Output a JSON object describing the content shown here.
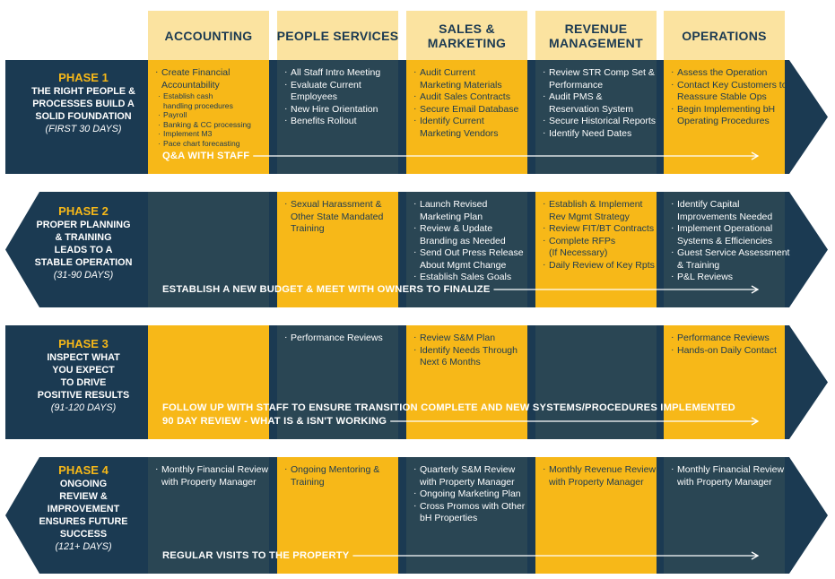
{
  "colors": {
    "navy": "#1b3a52",
    "gold": "#f7b818",
    "header_bg": "#fbe3a0",
    "dark_cell": "#2a4654"
  },
  "columns": [
    "ACCOUNTING",
    "PEOPLE SERVICES",
    "SALES &\nMARKETING",
    "REVENUE\nMANAGEMENT",
    "OPERATIONS"
  ],
  "phases": [
    {
      "num": "PHASE 1",
      "title": "THE RIGHT PEOPLE &\nPROCESSES BUILD A\nSOLID FOUNDATION",
      "days": "(FIRST 30 DAYS)",
      "banner": [
        "Q&A WITH STAFF"
      ],
      "cells": [
        {
          "items": [
            "Create Financial\nAccountability"
          ],
          "subitems": [
            "Establish cash\nhandling procedures",
            "Payroll",
            "Banking & CC processing",
            "Implement M3",
            "Pace chart forecasting"
          ]
        },
        {
          "items": [
            "All Staff Intro Meeting",
            "Evaluate Current\nEmployees",
            "New Hire Orientation",
            "Benefits Rollout"
          ]
        },
        {
          "items": [
            "Audit Current\nMarketing Materials",
            "Audit Sales Contracts",
            "Secure Email Database",
            "Identify Current\nMarketing Vendors"
          ]
        },
        {
          "items": [
            "Review STR Comp Set &\nPerformance",
            "Audit PMS &\nReservation System",
            "Secure Historical Reports",
            "Identify Need Dates"
          ]
        },
        {
          "items": [
            "Assess the Operation",
            "Contact Key Customers to\nReassure Stable Ops",
            "Begin Implementing bH\nOperating Procedures"
          ]
        }
      ]
    },
    {
      "num": "PHASE 2",
      "title": "PROPER PLANNING\n& TRAINING\nLEADS TO A\nSTABLE OPERATION",
      "days": "(31-90 DAYS)",
      "banner": [
        "ESTABLISH A NEW BUDGET & MEET WITH OWNERS TO FINALIZE"
      ],
      "cells": [
        {
          "items": []
        },
        {
          "items": [
            "Sexual Harassment &\nOther State Mandated\nTraining"
          ]
        },
        {
          "items": [
            "Launch Revised\nMarketing Plan",
            "Review & Update\nBranding as Needed",
            "Send Out Press Release\nAbout Mgmt Change",
            "Establish Sales Goals"
          ]
        },
        {
          "items": [
            "Establish & Implement\nRev Mgmt Strategy",
            "Review FIT/BT Contracts",
            "Complete RFPs\n(If Necessary)",
            "Daily Review of Key Rpts"
          ]
        },
        {
          "items": [
            "Identify Capital\nImprovements Needed",
            "Implement Operational\nSystems & Efficiencies",
            "Guest Service Assessment\n& Training",
            "P&L Reviews"
          ]
        }
      ]
    },
    {
      "num": "PHASE 3",
      "title": "INSPECT WHAT\nYOU EXPECT\nTO DRIVE\nPOSITIVE RESULTS",
      "days": "(91-120 DAYS)",
      "banner": [
        "FOLLOW UP WITH STAFF TO ENSURE TRANSITION COMPLETE AND NEW SYSTEMS/PROCEDURES IMPLEMENTED",
        "90 DAY REVIEW - WHAT IS & ISN'T WORKING"
      ],
      "cells": [
        {
          "items": []
        },
        {
          "items": [
            "Performance Reviews"
          ]
        },
        {
          "items": [
            "Review S&M Plan",
            "Identify Needs Through\nNext 6 Months"
          ]
        },
        {
          "items": []
        },
        {
          "items": [
            "Performance Reviews",
            "Hands-on Daily Contact"
          ]
        }
      ]
    },
    {
      "num": "PHASE 4",
      "title": "ONGOING\nREVIEW &\nIMPROVEMENT\nENSURES FUTURE\nSUCCESS",
      "days": "(121+ DAYS)",
      "banner": [
        "REGULAR VISITS TO THE PROPERTY"
      ],
      "cells": [
        {
          "items": [
            "Monthly Financial Review\nwith Property Manager"
          ]
        },
        {
          "items": [
            "Ongoing Mentoring &\nTraining"
          ]
        },
        {
          "items": [
            "Quarterly S&M Review\nwith Property Manager",
            "Ongoing Marketing Plan",
            "Cross Promos with Other\nbH Properties"
          ]
        },
        {
          "items": [
            "Monthly Revenue Review\nwith Property Manager"
          ]
        },
        {
          "items": [
            "Monthly Financial Review\nwith Property Manager"
          ]
        }
      ]
    }
  ]
}
